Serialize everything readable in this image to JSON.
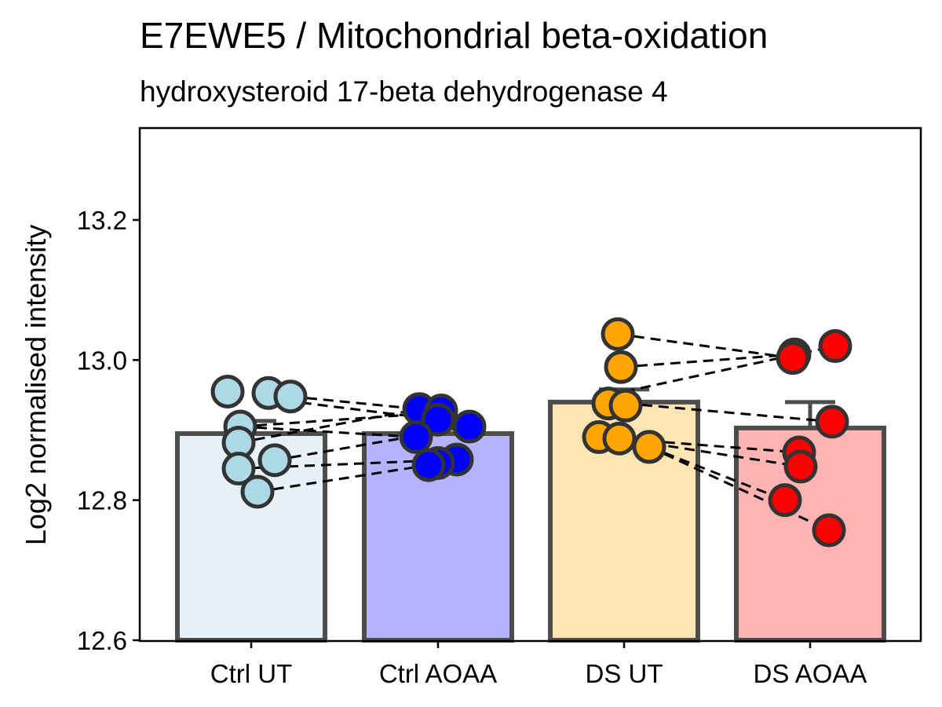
{
  "chart_data": {
    "type": "bar",
    "title": "E7EWE5 / Mitochondrial beta-oxidation",
    "subtitle": "hydroxysteroid 17-beta dehydrogenase 4",
    "xlabel": "",
    "ylabel": "Log2 normalised intensity",
    "ylim": [
      12.6,
      13.33
    ],
    "yticks": [
      12.6,
      12.8,
      13.0,
      13.2
    ],
    "ytick_labels": [
      "12.6",
      "12.8",
      "13.0",
      "13.2"
    ],
    "grid": false,
    "categories": [
      "Ctrl UT",
      "Ctrl AOAA",
      "DS UT",
      "DS AOAA"
    ],
    "bar_fill_colors": [
      "#e6f2f8",
      "#b3b3ff",
      "#fde4b3",
      "#ffb3b3"
    ],
    "point_colors": [
      "#add8e6",
      "#0000ff",
      "#ffa500",
      "#ff0000"
    ],
    "bar_outline_color": "#4d4d4d",
    "values": [
      12.895,
      12.895,
      12.94,
      12.903
    ],
    "error_upper": [
      12.913,
      12.902,
      12.958,
      12.94
    ],
    "points": [
      [
        12.955,
        12.953,
        12.948,
        12.905,
        12.882,
        12.857,
        12.845,
        12.812
      ],
      [
        12.93,
        12.928,
        12.915,
        12.905,
        12.89,
        12.858,
        12.853,
        12.85
      ],
      [
        13.037,
        12.99,
        12.938,
        12.935,
        12.89,
        12.888,
        12.876,
        12.876
      ],
      [
        13.02,
        13.008,
        13.003,
        12.912,
        12.868,
        12.848,
        12.8,
        12.757
      ]
    ],
    "pairs": [
      {
        "from": 0,
        "to": 1,
        "from_values": [
          12.948,
          12.945,
          12.905,
          12.905,
          12.882,
          12.857,
          12.845,
          12.812
        ],
        "to_values": [
          12.93,
          12.915,
          12.925,
          12.89,
          12.93,
          12.905,
          12.858,
          12.85
        ]
      },
      {
        "from": 2,
        "to": 3,
        "from_values": [
          13.037,
          12.99,
          12.95,
          12.938,
          12.89,
          12.888,
          12.876,
          12.876
        ],
        "to_values": [
          13.003,
          13.008,
          13.02,
          12.912,
          12.868,
          12.848,
          12.8,
          12.757
        ]
      }
    ]
  }
}
